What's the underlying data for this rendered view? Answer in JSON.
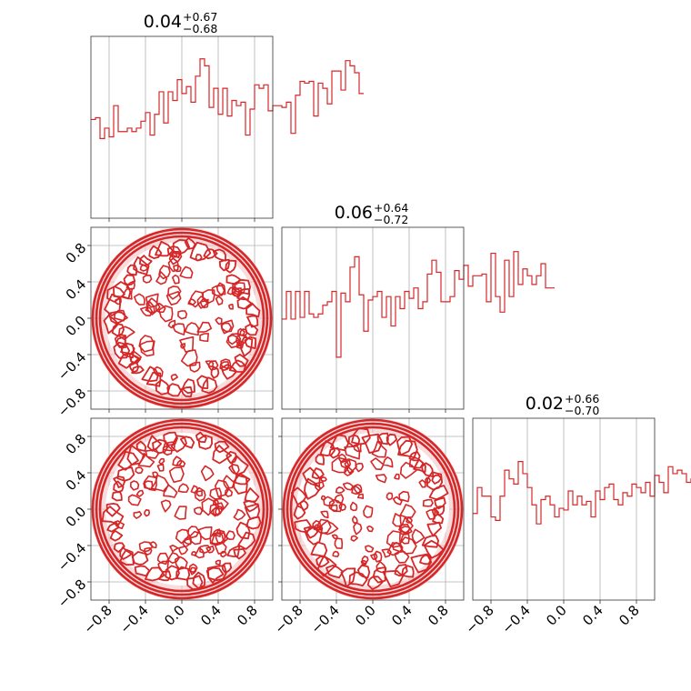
{
  "figure": {
    "type": "corner-plot",
    "color": "#d62728",
    "fill_light": "#f2c1c2",
    "fill_mid": "#e88385"
  },
  "titles": [
    {
      "median": "0.04",
      "upper": "+0.67",
      "lower": "−0.68"
    },
    {
      "median": "0.06",
      "upper": "+0.64",
      "lower": "−0.72"
    },
    {
      "median": "0.02",
      "upper": "+0.66",
      "lower": "−0.70"
    }
  ],
  "tick_labels": [
    "−0.8",
    "−0.4",
    "0.0",
    "0.4",
    "0.8"
  ],
  "chart_data": [
    {
      "type": "histogram",
      "panel": "1D marginal, parameter 1",
      "xlim": [
        -1.0,
        1.0
      ],
      "bin_width": 0.05,
      "x_start": -1.0,
      "values": [
        0.57,
        0.58,
        0.46,
        0.52,
        0.47,
        0.65,
        0.5,
        0.5,
        0.52,
        0.5,
        0.52,
        0.56,
        0.61,
        0.48,
        0.6,
        0.73,
        0.55,
        0.73,
        0.68,
        0.8,
        0.72,
        0.76,
        0.67,
        0.82,
        0.92,
        0.88,
        0.64,
        0.75,
        0.6,
        0.75,
        0.59,
        0.68,
        0.65,
        0.67,
        0.48,
        0.63,
        0.77,
        0.75,
        0.77,
        0.62,
        0.65,
        0.65,
        0.64,
        0.67,
        0.49,
        0.71,
        0.79,
        0.78,
        0.79,
        0.59,
        0.78,
        0.75,
        0.66,
        0.85,
        0.85,
        0.74,
        0.91,
        0.88,
        0.84,
        0.72
      ],
      "ylim": [
        0,
        1.05
      ]
    },
    {
      "type": "histogram",
      "panel": "1D marginal, parameter 2",
      "xlim": [
        -1.0,
        1.0
      ],
      "bin_width": 0.05,
      "x_start": -1.0,
      "values": [
        0.52,
        0.68,
        0.52,
        0.68,
        0.53,
        0.68,
        0.55,
        0.53,
        0.55,
        0.6,
        0.62,
        0.68,
        0.3,
        0.67,
        0.62,
        0.82,
        0.88,
        0.66,
        0.45,
        0.63,
        0.65,
        0.68,
        0.53,
        0.65,
        0.48,
        0.65,
        0.58,
        0.68,
        0.64,
        0.7,
        0.58,
        0.62,
        0.78,
        0.86,
        0.79,
        0.62,
        0.62,
        0.65,
        0.8,
        0.75,
        0.83,
        0.71,
        0.77,
        0.77,
        0.78,
        0.62,
        0.9,
        0.65,
        0.56,
        0.86,
        0.65,
        0.91,
        0.72,
        0.81,
        0.77,
        0.72,
        0.77,
        0.84,
        0.7,
        0.7
      ],
      "ylim": [
        0,
        1.05
      ]
    },
    {
      "type": "histogram",
      "panel": "1D marginal, parameter 3",
      "xlim": [
        -1.0,
        1.0
      ],
      "bin_width": 0.05,
      "x_start": -1.0,
      "values": [
        0.5,
        0.65,
        0.6,
        0.6,
        0.48,
        0.46,
        0.6,
        0.75,
        0.7,
        0.67,
        0.8,
        0.73,
        0.65,
        0.55,
        0.44,
        0.58,
        0.6,
        0.55,
        0.48,
        0.53,
        0.52,
        0.63,
        0.55,
        0.6,
        0.55,
        0.57,
        0.48,
        0.63,
        0.58,
        0.65,
        0.67,
        0.58,
        0.55,
        0.62,
        0.6,
        0.67,
        0.65,
        0.62,
        0.68,
        0.6,
        0.72,
        0.68,
        0.62,
        0.77,
        0.73,
        0.75,
        0.73,
        0.68,
        0.7,
        0.63,
        0.55,
        0.7,
        0.58,
        0.72,
        0.71,
        0.64,
        0.62,
        0.68,
        0.6,
        0.72
      ],
      "ylim": [
        0,
        1.05
      ]
    },
    {
      "type": "contour",
      "panel": "2D, parameter 2 vs parameter 1",
      "xlim": [
        -1.0,
        1.0
      ],
      "ylim": [
        -1.0,
        1.0
      ],
      "seed": 11
    },
    {
      "type": "contour",
      "panel": "2D, parameter 3 vs parameter 1",
      "xlim": [
        -1.0,
        1.0
      ],
      "ylim": [
        -1.0,
        1.0
      ],
      "seed": 23
    },
    {
      "type": "contour",
      "panel": "2D, parameter 3 vs parameter 2",
      "xlim": [
        -1.0,
        1.0
      ],
      "ylim": [
        -1.0,
        1.0
      ],
      "seed": 37
    }
  ]
}
